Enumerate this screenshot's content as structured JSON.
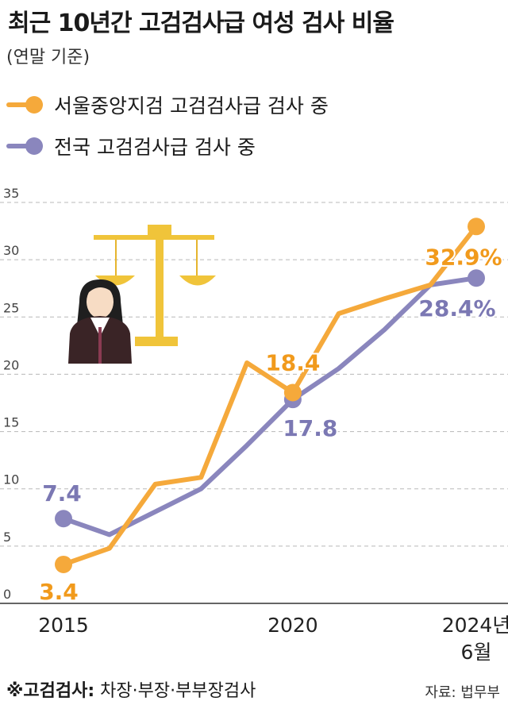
{
  "title": "최근 10년간 고검검사급 여성 검사 비율",
  "subtitle": "(연말 기준)",
  "footnote": {
    "mark": "※고검검사:",
    "text": "차장·부장·부부장검사"
  },
  "source": "자료: 법무부",
  "colors": {
    "seoul": "#f5a93b",
    "national": "#8a86bd",
    "seoul_label": "#f19a1c",
    "national_label": "#7b78b3",
    "grid": "#b8b8b8"
  },
  "icons": [
    "scales-of-justice-icon",
    "female-prosecutor-icon"
  ],
  "chart_data": {
    "type": "line",
    "x": [
      2015,
      2016,
      2017,
      2018,
      2019,
      2020,
      2021,
      2022,
      2023,
      2024
    ],
    "x_tick_labels": [
      "2015",
      "2020",
      "2024년\n6월"
    ],
    "y_ticks": [
      0,
      5,
      10,
      15,
      20,
      25,
      30,
      35
    ],
    "ylim": [
      0,
      35
    ],
    "grid": true,
    "legend_position": "top-left",
    "series": [
      {
        "name": "서울중앙지검 고검검사급 검사 중",
        "key": "seoul",
        "values": [
          3.4,
          4.8,
          10.4,
          11.0,
          21.0,
          18.4,
          25.3,
          26.6,
          27.8,
          32.9
        ],
        "labels": {
          "0": "3.4",
          "5": "18.4",
          "9": "32.9%"
        }
      },
      {
        "name": "전국 고검검사급 검사 중",
        "key": "national",
        "values": [
          7.4,
          6.0,
          8.0,
          10.0,
          13.8,
          17.8,
          20.5,
          23.9,
          27.8,
          28.4
        ],
        "labels": {
          "0": "7.4",
          "5": "17.8",
          "9": "28.4%"
        }
      }
    ]
  }
}
